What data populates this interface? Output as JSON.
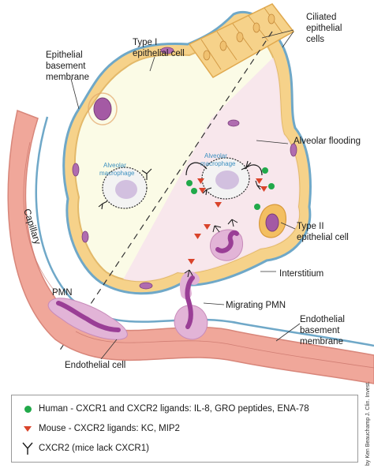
{
  "labels": {
    "ciliated": [
      "Ciliated",
      "epithelial",
      "cells"
    ],
    "type1": [
      "Type I",
      "epithelial cell"
    ],
    "epi_membrane": [
      "Epithelial",
      "basement",
      "membrane"
    ],
    "alveolar_flooding": "Alveolar flooding",
    "macrophage_left": [
      "Alveolar",
      "macrophage"
    ],
    "macrophage_right": [
      "Alveolar",
      "macrophage"
    ],
    "capillary": "Capillary",
    "type2": [
      "Type II",
      "epithelial cell"
    ],
    "interstitium": "Interstitium",
    "pmn": "PMN",
    "migrating_pmn": "Migrating PMN",
    "endo_membrane": [
      "Endothelial",
      "basement",
      "membrane"
    ],
    "endothelial_cell": "Endothelial cell"
  },
  "credit": "by Ken Beauchamp J. Clin. Invest.",
  "legend": {
    "items": [
      {
        "symbol": "green-circle-icon",
        "text": "Human - CXCR1 and CXCR2 ligands: IL-8, GRO peptides, ENA-78"
      },
      {
        "symbol": "red-triangle-icon",
        "text": "Mouse - CXCR2 ligands: KC, MIP2"
      },
      {
        "symbol": "receptor-y-icon",
        "text": "CXCR2 (mice lack CXCR1)"
      }
    ]
  },
  "colors": {
    "ligand_human": "#21a94a",
    "ligand_mouse": "#d9442b",
    "capillary": "#f0a79a",
    "cell_nucleus": "#a45aa4",
    "alveolar_space": "#fbfbe6",
    "epithelium": "#f6d28a",
    "basement_membrane": "#6fa8c8"
  }
}
